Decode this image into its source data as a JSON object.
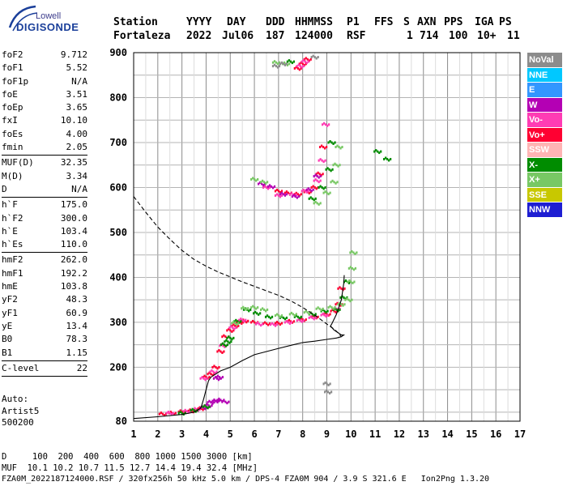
{
  "logo": {
    "line1": "Lowell",
    "line2": "DIGISONDE"
  },
  "header": {
    "row1": [
      "Station",
      "YYYY",
      "DAY",
      "DDD",
      "HHMMSS",
      "P1",
      "FFS",
      "S",
      "AXN",
      "PPS",
      "IGA",
      "PS"
    ],
    "row2": [
      "Fortaleza",
      "2022",
      "Jul06",
      "187",
      "124000",
      "RSF",
      "1",
      "714",
      "100",
      "10+",
      "11"
    ]
  },
  "params": [
    {
      "name": "foF2",
      "value": "9.712"
    },
    {
      "name": "foF1",
      "value": "5.52"
    },
    {
      "name": "foF1p",
      "value": "N/A"
    },
    {
      "name": "foE",
      "value": "3.51"
    },
    {
      "name": "foEp",
      "value": "3.65"
    },
    {
      "name": "fxI",
      "value": "10.10"
    },
    {
      "name": "foEs",
      "value": "4.00"
    },
    {
      "name": "fmin",
      "value": "2.05"
    },
    {
      "sep": true
    },
    {
      "name": "MUF(D)",
      "value": "32.35"
    },
    {
      "name": "M(D)",
      "value": "3.34"
    },
    {
      "name": "D",
      "value": "N/A"
    },
    {
      "sep": true
    },
    {
      "name": "h`F",
      "value": "175.0"
    },
    {
      "name": "h`F2",
      "value": "300.0"
    },
    {
      "name": "h`E",
      "value": "103.4"
    },
    {
      "name": "h`Es",
      "value": "110.0"
    },
    {
      "sep": true
    },
    {
      "name": "hmF2",
      "value": "262.0"
    },
    {
      "name": "hmF1",
      "value": "192.2"
    },
    {
      "name": "hmE",
      "value": "103.8"
    },
    {
      "name": "yF2",
      "value": "48.3"
    },
    {
      "name": "yF1",
      "value": "60.9"
    },
    {
      "name": "yE",
      "value": "13.4"
    },
    {
      "name": "B0",
      "value": "78.3"
    },
    {
      "name": "B1",
      "value": "1.15"
    },
    {
      "sep": true
    },
    {
      "name": "C-level",
      "value": "22"
    },
    {
      "sep": true
    }
  ],
  "auto_info": [
    "Auto:",
    "Artist5",
    "500200"
  ],
  "footer": {
    "line1": "D     100  200  400  600  800 1000 1500 3000 [km]",
    "line2": "MUF  10.1 10.2 10.7 11.5 12.7 14.4 19.4 32.4 [MHz]",
    "line3": "FZA0M_2022187124000.RSF / 320fx256h 50 kHz 5.0 km / DPS-4 FZA0M 904 / 3.9 S 321.6 E   Ion2Png 1.3.20"
  },
  "legend": [
    {
      "label": "NoVal",
      "color": "#8c8c8c"
    },
    {
      "label": "NNE",
      "color": "#00c8ff"
    },
    {
      "label": "E",
      "color": "#3296ff"
    },
    {
      "label": "W",
      "color": "#b400b4"
    },
    {
      "label": "Vo-",
      "color": "#ff3cb4"
    },
    {
      "label": "Vo+",
      "color": "#ff0032"
    },
    {
      "label": "SSW",
      "color": "#ffb4b4"
    },
    {
      "label": "X-",
      "color": "#008c00"
    },
    {
      "label": "X+",
      "color": "#78c864"
    },
    {
      "label": "SSE",
      "color": "#c8c800"
    },
    {
      "label": "NNW",
      "color": "#1e1ed2"
    }
  ],
  "chart_data": {
    "type": "scatter",
    "xlabel": "",
    "ylabel": "",
    "xlim": [
      1,
      17
    ],
    "ylim": [
      80,
      900
    ],
    "x_ticks": [
      1,
      2,
      3,
      4,
      5,
      6,
      7,
      8,
      9,
      10,
      11,
      12,
      13,
      14,
      15,
      16,
      17
    ],
    "y_ticks": [
      80,
      200,
      300,
      400,
      500,
      600,
      700,
      800,
      900
    ],
    "grid": true,
    "series": [
      {
        "name": "Vo+",
        "color": "#ff0032",
        "points": [
          [
            4.0,
            178
          ],
          [
            4.2,
            185
          ],
          [
            4.4,
            200
          ],
          [
            4.6,
            235
          ],
          [
            4.8,
            268
          ],
          [
            5.0,
            282
          ],
          [
            5.2,
            292
          ],
          [
            5.4,
            300
          ],
          [
            5.6,
            303
          ],
          [
            6.0,
            300
          ],
          [
            6.5,
            297
          ],
          [
            7.0,
            298
          ],
          [
            7.5,
            302
          ],
          [
            8.0,
            306
          ],
          [
            8.5,
            312
          ],
          [
            9.0,
            318
          ],
          [
            9.3,
            325
          ],
          [
            9.5,
            340
          ],
          [
            9.6,
            375
          ],
          [
            2.2,
            96
          ],
          [
            2.6,
            98
          ],
          [
            3.0,
            101
          ],
          [
            3.4,
            103
          ],
          [
            3.8,
            108
          ],
          [
            7.0,
            592
          ],
          [
            7.4,
            588
          ],
          [
            7.8,
            585
          ],
          [
            8.2,
            590
          ],
          [
            8.5,
            600
          ],
          [
            8.7,
            630
          ],
          [
            8.85,
            690
          ],
          [
            7.8,
            865
          ],
          [
            8.0,
            875
          ],
          [
            8.2,
            885
          ]
        ]
      },
      {
        "name": "Vo-",
        "color": "#ff3cb4",
        "points": [
          [
            3.9,
            175
          ],
          [
            4.3,
            190
          ],
          [
            4.7,
            248
          ],
          [
            5.1,
            288
          ],
          [
            5.5,
            305
          ],
          [
            6.2,
            296
          ],
          [
            6.8,
            295
          ],
          [
            7.4,
            300
          ],
          [
            7.9,
            304
          ],
          [
            8.4,
            310
          ],
          [
            8.9,
            316
          ],
          [
            9.4,
            330
          ],
          [
            2.5,
            98
          ],
          [
            3.2,
            102
          ],
          [
            3.6,
            106
          ],
          [
            4.0,
            112
          ],
          [
            6.5,
            600
          ],
          [
            7.0,
            582
          ],
          [
            7.6,
            584
          ],
          [
            8.1,
            592
          ],
          [
            8.6,
            615
          ],
          [
            8.8,
            660
          ],
          [
            8.95,
            740
          ],
          [
            7.9,
            870
          ],
          [
            8.1,
            880
          ]
        ]
      },
      {
        "name": "W",
        "color": "#b400b4",
        "points": [
          [
            4.2,
            122
          ],
          [
            4.4,
            125
          ],
          [
            4.6,
            127
          ],
          [
            4.8,
            123
          ],
          [
            3.9,
            110
          ],
          [
            4.1,
            115
          ],
          [
            6.3,
            608
          ],
          [
            6.7,
            602
          ],
          [
            7.2,
            585
          ],
          [
            7.7,
            580
          ],
          [
            8.3,
            595
          ],
          [
            8.6,
            625
          ],
          [
            4.45,
            175
          ],
          [
            4.55,
            178
          ]
        ]
      },
      {
        "name": "X-",
        "color": "#008c00",
        "points": [
          [
            5.0,
            265
          ],
          [
            5.3,
            302
          ],
          [
            5.7,
            328
          ],
          [
            6.1,
            320
          ],
          [
            6.6,
            312
          ],
          [
            7.2,
            310
          ],
          [
            7.8,
            312
          ],
          [
            8.4,
            318
          ],
          [
            8.9,
            325
          ],
          [
            9.4,
            328
          ],
          [
            9.7,
            355
          ],
          [
            9.85,
            390
          ],
          [
            4.75,
            250
          ],
          [
            4.9,
            257
          ],
          [
            3.0,
            98
          ],
          [
            3.5,
            104
          ],
          [
            4.0,
            112
          ],
          [
            8.4,
            575
          ],
          [
            8.8,
            600
          ],
          [
            9.1,
            640
          ],
          [
            9.2,
            700
          ],
          [
            11.1,
            680
          ],
          [
            11.5,
            663
          ],
          [
            7.5,
            880
          ]
        ]
      },
      {
        "name": "X+",
        "color": "#78c864",
        "points": [
          [
            5.2,
            298
          ],
          [
            5.6,
            331
          ],
          [
            6.0,
            333
          ],
          [
            6.4,
            328
          ],
          [
            7.0,
            315
          ],
          [
            7.6,
            318
          ],
          [
            8.2,
            322
          ],
          [
            8.7,
            330
          ],
          [
            9.2,
            333
          ],
          [
            9.6,
            340
          ],
          [
            9.9,
            350
          ],
          [
            10.0,
            390
          ],
          [
            10.05,
            420
          ],
          [
            10.1,
            455
          ],
          [
            8.6,
            565
          ],
          [
            9.0,
            588
          ],
          [
            9.3,
            612
          ],
          [
            9.4,
            650
          ],
          [
            9.5,
            690
          ],
          [
            6.0,
            618
          ],
          [
            6.4,
            612
          ],
          [
            6.9,
            878
          ],
          [
            7.3,
            875
          ]
        ]
      },
      {
        "name": "NoVal",
        "color": "#8c8c8c",
        "points": [
          [
            6.9,
            870
          ],
          [
            7.2,
            875
          ],
          [
            8.5,
            890
          ],
          [
            9.0,
            163
          ],
          [
            9.05,
            145
          ]
        ]
      }
    ],
    "lines": [
      {
        "name": "profile",
        "style": "solid",
        "points": [
          [
            1.0,
            86
          ],
          [
            2.0,
            90
          ],
          [
            3.0,
            95
          ],
          [
            3.5,
            100
          ],
          [
            3.6,
            103
          ],
          [
            3.75,
            108
          ],
          [
            3.8,
            112
          ],
          [
            3.9,
            130
          ],
          [
            4.0,
            150
          ],
          [
            4.1,
            170
          ],
          [
            4.2,
            178
          ],
          [
            4.4,
            185
          ],
          [
            4.6,
            192
          ],
          [
            5.0,
            200
          ],
          [
            5.5,
            215
          ],
          [
            6.0,
            228
          ],
          [
            7.0,
            242
          ],
          [
            7.6,
            250
          ],
          [
            8.0,
            255
          ],
          [
            8.5,
            258
          ],
          [
            9.0,
            262
          ],
          [
            9.4,
            265
          ],
          [
            9.6,
            268
          ],
          [
            9.7,
            272
          ],
          [
            9.6,
            272
          ],
          [
            9.3,
            283
          ],
          [
            9.15,
            292
          ],
          [
            9.2,
            296
          ],
          [
            9.4,
            318
          ],
          [
            9.6,
            350
          ],
          [
            9.7,
            387
          ],
          [
            9.72,
            405
          ]
        ]
      },
      {
        "name": "topside",
        "style": "dashed",
        "points": [
          [
            1.0,
            580
          ],
          [
            1.5,
            545
          ],
          [
            2.0,
            512
          ],
          [
            2.5,
            485
          ],
          [
            3.0,
            460
          ],
          [
            3.5,
            440
          ],
          [
            4.0,
            425
          ],
          [
            4.5,
            412
          ],
          [
            5.0,
            401
          ],
          [
            5.5,
            390
          ],
          [
            6.0,
            380
          ],
          [
            6.5,
            370
          ],
          [
            7.0,
            360
          ],
          [
            7.5,
            348
          ],
          [
            8.0,
            333
          ],
          [
            8.5,
            316
          ],
          [
            9.0,
            296
          ],
          [
            9.3,
            285
          ],
          [
            9.5,
            275
          ],
          [
            9.6,
            268
          ]
        ]
      }
    ]
  }
}
